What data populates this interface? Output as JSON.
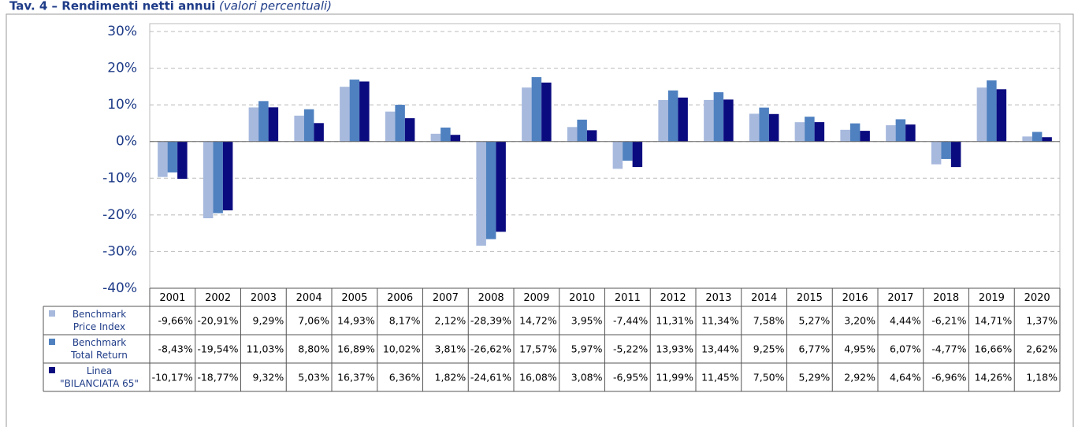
{
  "chart_data": {
    "type": "bar",
    "title": "Tav. 4 – Rendimenti netti annui",
    "subtitle": "(valori percentuali)",
    "categories": [
      "2001",
      "2002",
      "2003",
      "2004",
      "2005",
      "2006",
      "2007",
      "2008",
      "2009",
      "2010",
      "2011",
      "2012",
      "2013",
      "2014",
      "2015",
      "2016",
      "2017",
      "2018",
      "2019",
      "2020"
    ],
    "ylim": [
      -40,
      30
    ],
    "yticks": [
      {
        "value": -40,
        "label": "-40%"
      },
      {
        "value": -30,
        "label": "-30%"
      },
      {
        "value": -20,
        "label": "-20%"
      },
      {
        "value": -10,
        "label": "-10%"
      },
      {
        "value": 0,
        "label": "0%"
      },
      {
        "value": 10,
        "label": "10%"
      },
      {
        "value": 20,
        "label": "20%"
      },
      {
        "value": 30,
        "label": "30%"
      }
    ],
    "grid": true,
    "series": [
      {
        "name": "Benchmark\nPrice Index",
        "color": "#a7b9dd",
        "values": [
          -9.66,
          -20.91,
          9.29,
          7.06,
          14.93,
          8.17,
          2.12,
          -28.39,
          14.72,
          3.95,
          -7.44,
          11.31,
          11.34,
          7.58,
          5.27,
          3.2,
          4.44,
          -6.21,
          14.71,
          1.37
        ],
        "value_labels": [
          "-9,66%",
          "-20,91%",
          "9,29%",
          "7,06%",
          "14,93%",
          "8,17%",
          "2,12%",
          "-28,39%",
          "14,72%",
          "3,95%",
          "-7,44%",
          "11,31%",
          "11,34%",
          "7,58%",
          "5,27%",
          "3,20%",
          "4,44%",
          "-6,21%",
          "14,71%",
          "1,37%"
        ]
      },
      {
        "name": "Benchmark\nTotal Return",
        "color": "#4f81c0",
        "values": [
          -8.43,
          -19.54,
          11.03,
          8.8,
          16.89,
          10.02,
          3.81,
          -26.62,
          17.57,
          5.97,
          -5.22,
          13.93,
          13.44,
          9.25,
          6.77,
          4.95,
          6.07,
          -4.77,
          16.66,
          2.62
        ],
        "value_labels": [
          "-8,43%",
          "-19,54%",
          "11,03%",
          "8,80%",
          "16,89%",
          "10,02%",
          "3,81%",
          "-26,62%",
          "17,57%",
          "5,97%",
          "-5,22%",
          "13,93%",
          "13,44%",
          "9,25%",
          "6,77%",
          "4,95%",
          "6,07%",
          "-4,77%",
          "16,66%",
          "2,62%"
        ]
      },
      {
        "name": "Linea\n\"BILANCIATA 65\"",
        "color": "#0b0b80",
        "values": [
          -10.17,
          -18.77,
          9.32,
          5.03,
          16.37,
          6.36,
          1.82,
          -24.61,
          16.08,
          3.08,
          -6.95,
          11.99,
          11.45,
          7.5,
          5.29,
          2.92,
          4.64,
          -6.96,
          14.26,
          1.18
        ],
        "value_labels": [
          "-10,17%",
          "-18,77%",
          "9,32%",
          "5,03%",
          "16,37%",
          "6,36%",
          "1,82%",
          "-24,61%",
          "16,08%",
          "3,08%",
          "-6,95%",
          "11,99%",
          "11,45%",
          "7,50%",
          "5,29%",
          "2,92%",
          "4,64%",
          "-6,96%",
          "14,26%",
          "1,18%"
        ]
      }
    ]
  }
}
